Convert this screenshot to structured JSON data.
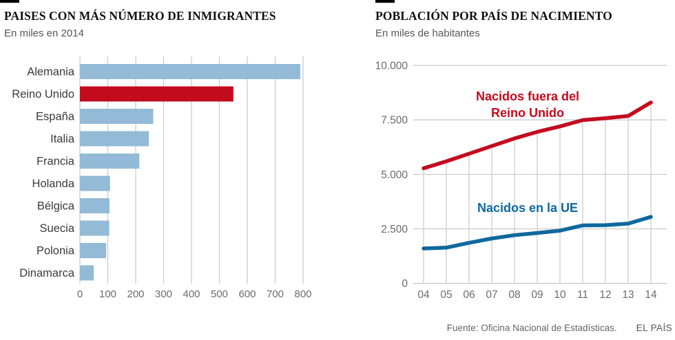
{
  "footer": {
    "source": "Fuente: Oficina Nacional de Estadísticas.",
    "brand": "EL PAÍS"
  },
  "colors": {
    "bar_blue": "#93bad6",
    "accent_red": "#c30b1e",
    "line_blue": "#0e689e",
    "grid": "#cccccc",
    "label_dark": "#3a3a3a",
    "tick_gray": "#6b6b6b"
  },
  "chart_data": [
    {
      "id": "immigrants-by-country",
      "type": "bar",
      "orientation": "horizontal",
      "title": "PAISES CON MÁS NÚMERO DE INMIGRANTES",
      "subtitle": "En miles en 2014",
      "categories": [
        "Alemania",
        "Reino Unido",
        "España",
        "Italia",
        "Francia",
        "Holanda",
        "Bélgica",
        "Suecia",
        "Polonia",
        "Dinamarca"
      ],
      "values": [
        790,
        550,
        263,
        247,
        213,
        108,
        106,
        105,
        94,
        50
      ],
      "highlight_category": "Reino Unido",
      "x_ticks": [
        0,
        100,
        200,
        300,
        400,
        500,
        600,
        700,
        800
      ],
      "xlim": [
        0,
        800
      ],
      "grid": "vertical",
      "legend": "none"
    },
    {
      "id": "population-by-birth-country",
      "type": "line",
      "title": "POBLACIÓN POR PAÍS DE NACIMIENTO",
      "subtitle": "En miles de habitantes",
      "x": [
        "04",
        "05",
        "06",
        "07",
        "08",
        "09",
        "10",
        "11",
        "12",
        "13",
        "14"
      ],
      "series": [
        {
          "name": "Nacidos fuera del Reino Unido",
          "label_lines": [
            "Nacidos fuera del",
            "Reino Unido"
          ],
          "color_key": "accent_red",
          "values": [
            5280,
            5600,
            5950,
            6300,
            6650,
            6950,
            7200,
            7490,
            7580,
            7680,
            8300
          ]
        },
        {
          "name": "Nacidos en la UE",
          "label_lines": [
            "Nacidos en la UE"
          ],
          "color_key": "line_blue",
          "values": [
            1600,
            1640,
            1860,
            2060,
            2210,
            2310,
            2420,
            2660,
            2670,
            2740,
            3050
          ]
        }
      ],
      "y_ticks": [
        {
          "value": 10000,
          "label": "10.000"
        },
        {
          "value": 7500,
          "label": "7.500"
        },
        {
          "value": 5000,
          "label": "5.000"
        },
        {
          "value": 2500,
          "label": "2.500"
        },
        {
          "value": 0,
          "label": "0"
        }
      ],
      "ylim": [
        0,
        10000
      ],
      "grid": "horizontal gridlines + vertical year drop-lines under red series",
      "legend": "inline-labels"
    }
  ]
}
